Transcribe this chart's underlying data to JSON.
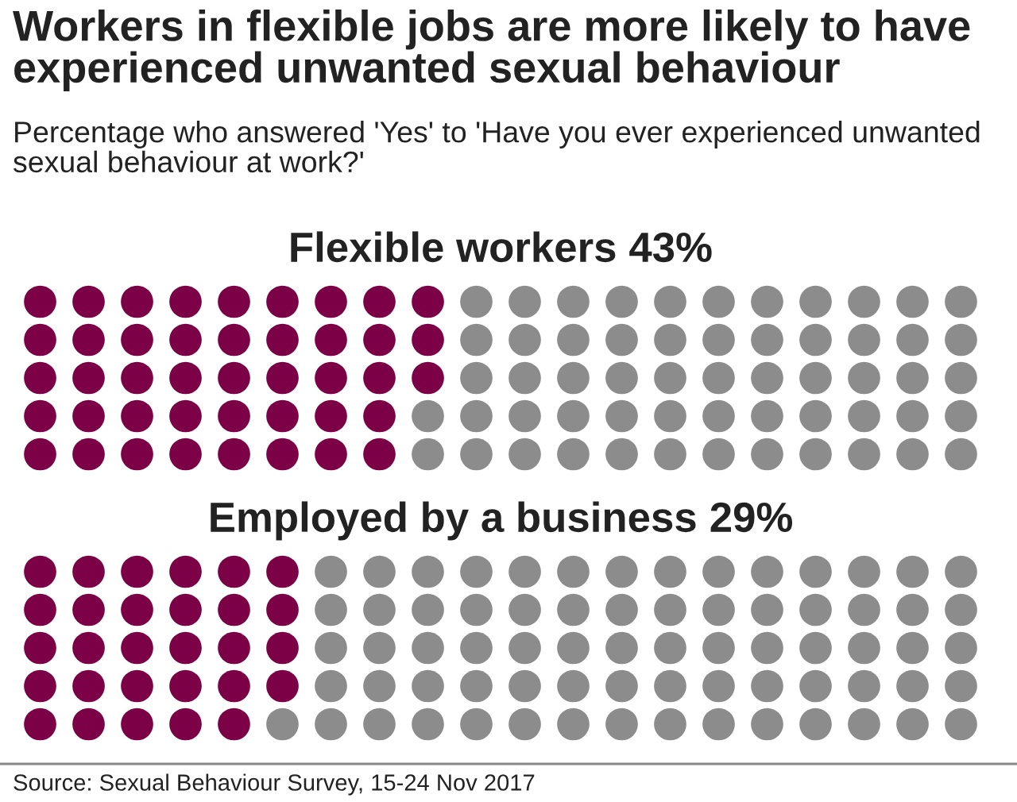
{
  "chart_data": [
    {
      "type": "other",
      "title": "Workers in flexible jobs are more likely to have experienced unwanted sexual behaviour",
      "subtitle": "Percentage who answered 'Yes' to 'Have you ever experienced unwanted sexual behaviour at work?'",
      "annotations": [
        "Source: Sexual Behaviour Survey, 15-24 Nov 2017"
      ]
    },
    {
      "type": "other",
      "categories": [
        "Flexible workers"
      ],
      "values": [
        43
      ],
      "value_labels": [
        "43%"
      ],
      "color": "#7b0046"
    },
    {
      "type": "other",
      "categories": [
        "Employed by a business"
      ],
      "values": [
        29
      ],
      "value_labels": [
        "29%"
      ],
      "color": "#7b0046"
    }
  ]
}
